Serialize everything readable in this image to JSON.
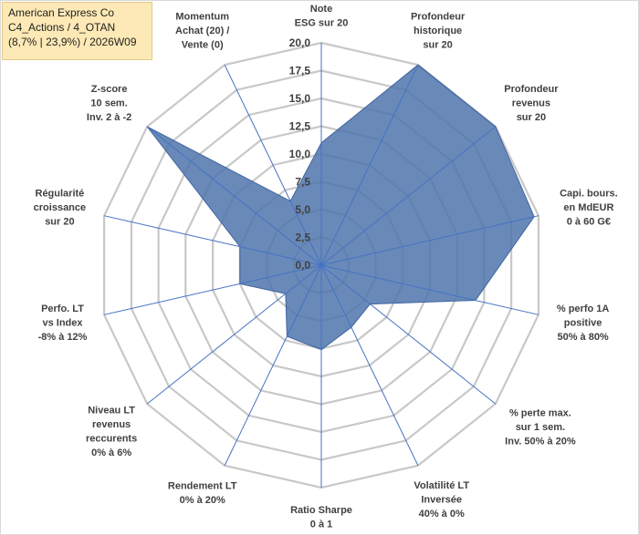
{
  "info_box": {
    "line1": "American Express Co",
    "line2": "C4_Actions / 4_OTAN",
    "line3": "(8,7% | 23,9%) / 2026W09"
  },
  "colors": {
    "fill": "#4f76ac",
    "edge": "#3f64a0",
    "spoke": "#4472c4",
    "grid": "#c8c8c8"
  },
  "chart_data": {
    "type": "radar",
    "title": "",
    "rmax": 20,
    "ticks": [
      "0,0",
      "2,5",
      "5,0",
      "7,5",
      "10,0",
      "12,5",
      "15,0",
      "17,5",
      "20,0"
    ],
    "grid": true,
    "legend": "none",
    "axes": [
      {
        "label": [
          "Note",
          "ESG sur 20"
        ],
        "value": 11
      },
      {
        "label": [
          "Profondeur",
          "historique",
          "sur 20"
        ],
        "value": 20
      },
      {
        "label": [
          "Profondeur",
          "revenus",
          "sur 20"
        ],
        "value": 20
      },
      {
        "label": [
          "Capi. bours.",
          "en MdEUR",
          "0 à 60 G€"
        ],
        "value": 19.6
      },
      {
        "label": [
          "% perfo 1A",
          "positive"
        ],
        "value": 14.2,
        "label_extra": "50% à 80%"
      },
      {
        "label": [
          "% perte max.",
          "sur 1 sem.",
          "Inv. 50% à 20%"
        ],
        "value": 5.6
      },
      {
        "label": [
          "Volatilité LT",
          "Inversée",
          "40% à 0%"
        ],
        "value": 6.2
      },
      {
        "label": [
          "Ratio Sharpe",
          "0 à 1"
        ],
        "value": 7.6
      },
      {
        "label": [
          "Rendement LT",
          "0% à 20%"
        ],
        "value": 7.1
      },
      {
        "label": [
          "Niveau LT",
          "revenus",
          "reccurents",
          "0% à 6%"
        ],
        "value": 4.1
      },
      {
        "label": [
          "Perfo. LT",
          "vs Index",
          "-8% à 12%"
        ],
        "value": 7.5
      },
      {
        "label": [
          "Régularité",
          "croissance",
          "sur 20"
        ],
        "value": 7.5
      },
      {
        "label": [
          "Z-score",
          "10 sem.",
          "Inv. 2 à -2"
        ],
        "value": 20
      },
      {
        "label": [
          "Momentum",
          "Achat (20) /",
          "Vente (0)"
        ],
        "value": 6.4
      }
    ]
  }
}
